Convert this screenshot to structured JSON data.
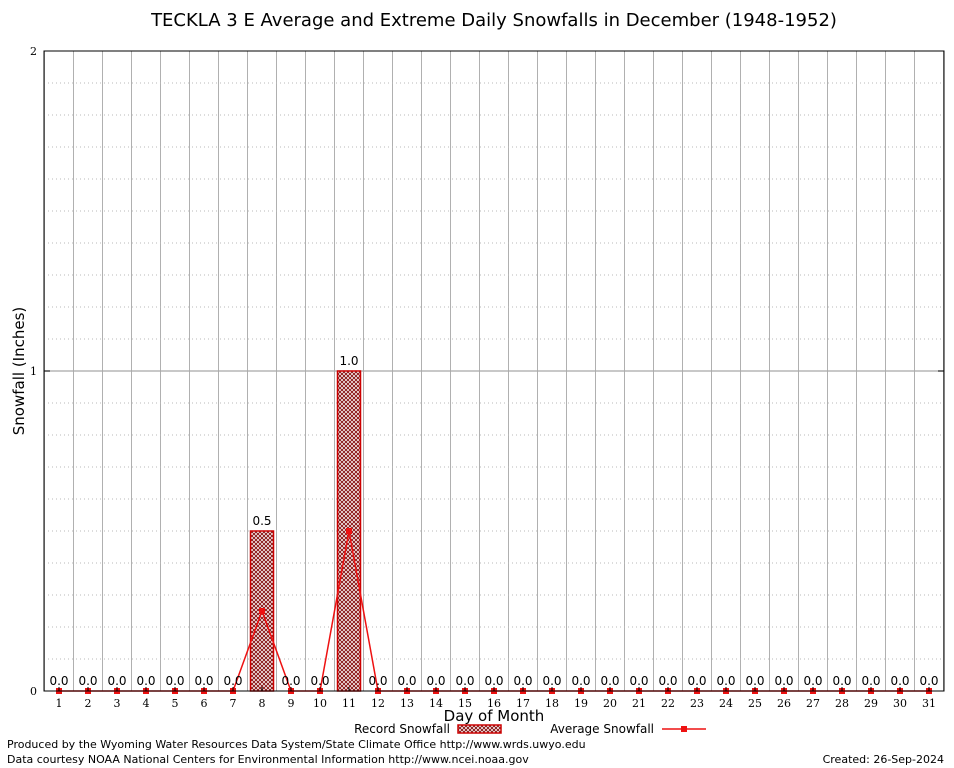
{
  "chart_data": {
    "type": "bar",
    "title": "TECKLA 3 E Average and Extreme Daily Snowfalls in December (1948-1952)",
    "xlabel": "Day of Month",
    "ylabel": "Snowfall (Inches)",
    "ylim": [
      0,
      2
    ],
    "yticks": [
      0,
      1,
      2
    ],
    "categories": [
      "1",
      "2",
      "3",
      "4",
      "5",
      "6",
      "7",
      "8",
      "9",
      "10",
      "11",
      "12",
      "13",
      "14",
      "15",
      "16",
      "17",
      "18",
      "19",
      "20",
      "21",
      "22",
      "23",
      "24",
      "25",
      "26",
      "27",
      "28",
      "29",
      "30",
      "31"
    ],
    "series": [
      {
        "name": "Record Snowfall",
        "type": "bar",
        "color": "#cc0000",
        "values": [
          0,
          0,
          0,
          0,
          0,
          0,
          0,
          0.5,
          0,
          0,
          1.0,
          0,
          0,
          0,
          0,
          0,
          0,
          0,
          0,
          0,
          0,
          0,
          0,
          0,
          0,
          0,
          0,
          0,
          0,
          0,
          0
        ],
        "labels": [
          "0.0",
          "0.0",
          "0.0",
          "0.0",
          "0.0",
          "0.0",
          "0.0",
          "0.5",
          "0.0",
          "0.0",
          "1.0",
          "0.0",
          "0.0",
          "0.0",
          "0.0",
          "0.0",
          "0.0",
          "0.0",
          "0.0",
          "0.0",
          "0.0",
          "0.0",
          "0.0",
          "0.0",
          "0.0",
          "0.0",
          "0.0",
          "0.0",
          "0.0",
          "0.0",
          "0.0"
        ]
      },
      {
        "name": "Average Snowfall",
        "type": "line",
        "color": "#ee1111",
        "values": [
          0,
          0,
          0,
          0,
          0,
          0,
          0,
          0.25,
          0,
          0,
          0.5,
          0,
          0,
          0,
          0,
          0,
          0,
          0,
          0,
          0,
          0,
          0,
          0,
          0,
          0,
          0,
          0,
          0,
          0,
          0,
          0
        ]
      }
    ],
    "grid": true,
    "legend": "bottom-center"
  },
  "credits": {
    "produced_by": "Produced by the Wyoming Water Resources Data System/State Climate Office http://www.wrds.uwyo.edu",
    "data_courtesy": "Data courtesy NOAA National Centers for Environmental Information http://www.ncei.noaa.gov",
    "created": "Created:  26-Sep-2024"
  }
}
